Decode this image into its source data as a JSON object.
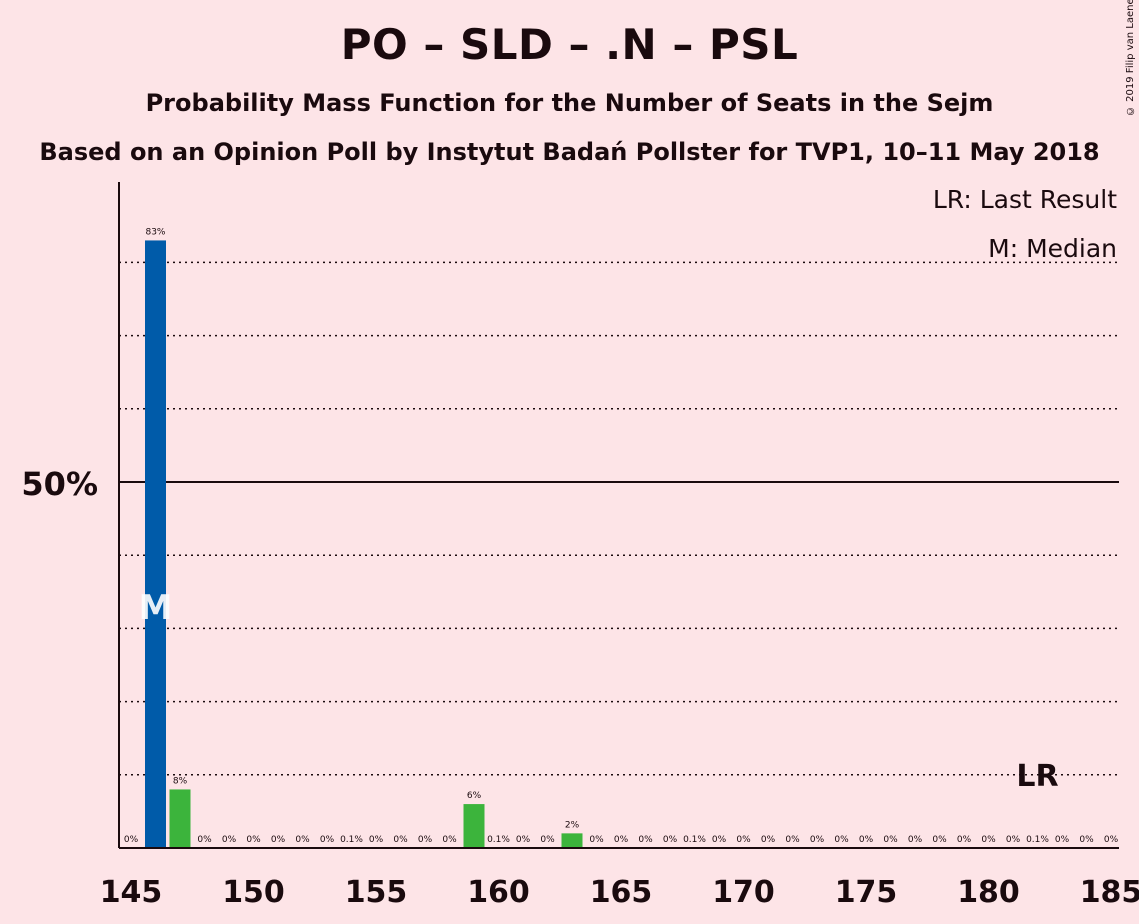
{
  "title": "PO – SLD – .N – PSL",
  "subtitle": "Probability Mass Function for the Number of Seats in the Sejm",
  "source": "Based on an Opinion Poll by Instytut Badań Pollster for TVP1, 10–11 May 2018",
  "copyright": "© 2019 Filip van Laenen",
  "legend": {
    "last_result": "LR: Last Result",
    "median": "M: Median"
  },
  "colors": {
    "background": "#fde4e7",
    "median_bar": "#005ba9",
    "bar": "#3cb43c",
    "grid": "#1a0a0e"
  },
  "chart_data": {
    "type": "bar",
    "x": [
      145,
      146,
      147,
      148,
      149,
      150,
      151,
      152,
      153,
      154,
      155,
      156,
      157,
      158,
      159,
      160,
      161,
      162,
      163,
      164,
      165,
      166,
      167,
      168,
      169,
      170,
      171,
      172,
      173,
      174,
      175,
      176,
      177,
      178,
      179,
      180,
      181,
      182,
      183,
      184,
      185
    ],
    "values": [
      0,
      83,
      8,
      0,
      0,
      0,
      0,
      0,
      0,
      0.1,
      0,
      0,
      0,
      0,
      6,
      0.1,
      0,
      0,
      2,
      0,
      0,
      0,
      0,
      0.1,
      0,
      0,
      0,
      0,
      0,
      0,
      0,
      0,
      0,
      0,
      0,
      0,
      0,
      0.1,
      0,
      0,
      0
    ],
    "labels": [
      "0%",
      "83%",
      "8%",
      "0%",
      "0%",
      "0%",
      "0%",
      "0%",
      "0%",
      "0.1%",
      "0%",
      "0%",
      "0%",
      "0%",
      "6%",
      "0.1%",
      "0%",
      "0%",
      "2%",
      "0%",
      "0%",
      "0%",
      "0%",
      "0.1%",
      "0%",
      "0%",
      "0%",
      "0%",
      "0%",
      "0%",
      "0%",
      "0%",
      "0%",
      "0%",
      "0%",
      "0%",
      "0%",
      "0.1%",
      "0%",
      "0%",
      "0%"
    ],
    "median_seat": 146,
    "median_marker": "M",
    "last_result_seat": 182,
    "last_result_marker": "LR",
    "x_ticks": [
      145,
      150,
      155,
      160,
      165,
      170,
      175,
      180,
      185
    ],
    "x_tick_labels": [
      "145",
      "150",
      "155",
      "160",
      "165",
      "170",
      "175",
      "180",
      "185"
    ],
    "y_tick_label": "50%",
    "y_tick_value": 50,
    "y_gridlines": [
      10,
      20,
      30,
      40,
      60,
      70,
      80
    ],
    "ylim": [
      0,
      90
    ],
    "grid": true,
    "legend_position": "top-right"
  }
}
